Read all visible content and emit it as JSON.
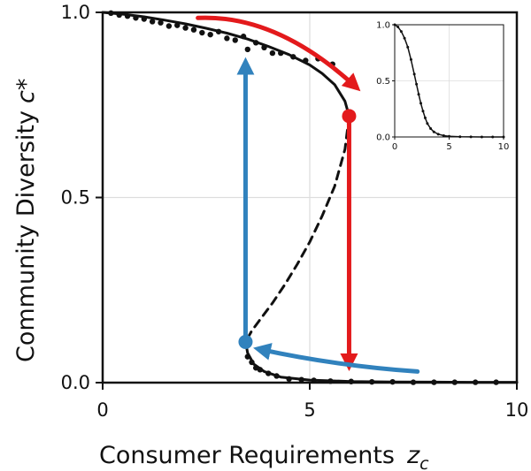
{
  "chart_data": {
    "type": "line",
    "xlabel": "Consumer Requirements",
    "xlabel_symbol": "z",
    "xlabel_subscript": "c",
    "ylabel": "Community Diversity",
    "ylabel_symbol": "c*",
    "xlim": [
      0,
      10
    ],
    "ylim": [
      0,
      1
    ],
    "xticks": [
      0,
      5,
      10
    ],
    "yticks": [
      0.0,
      0.5,
      1.0
    ],
    "xtick_labels": [
      "0",
      "5",
      "10"
    ],
    "ytick_labels": [
      "0.0",
      "0.5",
      "1.0"
    ],
    "grid": true,
    "series": [
      {
        "style": "solid",
        "x": [
          0,
          0.5,
          1,
          1.5,
          2,
          2.5,
          3,
          3.5,
          4,
          4.5,
          5,
          5.3,
          5.6,
          5.85,
          5.95
        ],
        "y": [
          1.0,
          0.995,
          0.988,
          0.979,
          0.969,
          0.957,
          0.944,
          0.928,
          0.908,
          0.886,
          0.858,
          0.835,
          0.805,
          0.76,
          0.72
        ]
      },
      {
        "style": "dashed",
        "x": [
          5.95,
          5.85,
          5.6,
          5.3,
          5.0,
          4.7,
          4.4,
          4.1,
          3.8,
          3.6,
          3.5,
          3.45
        ],
        "y": [
          0.72,
          0.63,
          0.53,
          0.45,
          0.38,
          0.32,
          0.265,
          0.215,
          0.17,
          0.14,
          0.12,
          0.11
        ]
      },
      {
        "style": "solid",
        "x": [
          3.45,
          3.5,
          3.65,
          3.9,
          4.3,
          5.0,
          6.0,
          7.0,
          8.0,
          9.0,
          10.0
        ],
        "y": [
          0.11,
          0.08,
          0.05,
          0.03,
          0.015,
          0.007,
          0.003,
          0.002,
          0.0015,
          0.001,
          0.001
        ]
      }
    ],
    "scatter_points": {
      "x": [
        0.2,
        0.4,
        0.6,
        0.8,
        1.0,
        1.2,
        1.4,
        1.6,
        1.8,
        2.0,
        2.2,
        2.4,
        2.6,
        2.8,
        3.0,
        3.2,
        3.4,
        3.5,
        3.7,
        3.9,
        4.1,
        4.3,
        4.6,
        4.9,
        5.2,
        5.55,
        3.5,
        3.6,
        3.7,
        3.8,
        4.0,
        4.2,
        4.5,
        4.8,
        5.1,
        5.5,
        6.0,
        6.5,
        7.0,
        7.5,
        8.0,
        8.5,
        9.0,
        9.5
      ],
      "y": [
        0.998,
        0.993,
        0.99,
        0.985,
        0.982,
        0.975,
        0.972,
        0.963,
        0.965,
        0.958,
        0.953,
        0.945,
        0.94,
        0.948,
        0.93,
        0.925,
        0.935,
        0.9,
        0.918,
        0.905,
        0.89,
        0.89,
        0.88,
        0.87,
        0.875,
        0.86,
        0.07,
        0.055,
        0.04,
        0.035,
        0.025,
        0.018,
        0.01,
        0.008,
        0.006,
        0.004,
        0.003,
        0.002,
        0.002,
        0.001,
        0.001,
        0.001,
        0.001,
        0.001
      ]
    },
    "annotations": [
      {
        "type": "arrow",
        "color": "#e31a1c",
        "shape": "curved",
        "from": [
          2.3,
          0.985
        ],
        "to": [
          6.1,
          0.8
        ]
      },
      {
        "type": "arrow",
        "color": "#e31a1c",
        "shape": "straight",
        "from": [
          5.95,
          0.72
        ],
        "to": [
          5.95,
          0.05
        ]
      },
      {
        "type": "arrow",
        "color": "#3182bd",
        "shape": "curved",
        "from": [
          7.6,
          0.03
        ],
        "to": [
          3.8,
          0.09
        ]
      },
      {
        "type": "arrow",
        "color": "#3182bd",
        "shape": "straight",
        "from": [
          3.45,
          0.11
        ],
        "to": [
          3.45,
          0.86
        ]
      }
    ],
    "markers": [
      {
        "x": 5.95,
        "y": 0.72,
        "color": "#e31a1c"
      },
      {
        "x": 3.45,
        "y": 0.11,
        "color": "#3182bd"
      }
    ],
    "inset": {
      "type": "line",
      "xlim": [
        0,
        10
      ],
      "ylim": [
        0,
        1
      ],
      "xtick_labels": [
        "0",
        "5",
        "10"
      ],
      "ytick_labels": [
        "0.0",
        "0.5",
        "1.0"
      ],
      "grid": true,
      "x": [
        0,
        0.3,
        0.6,
        0.9,
        1.2,
        1.5,
        1.8,
        2.0,
        2.2,
        2.4,
        2.6,
        2.8,
        3.0,
        3.3,
        3.6,
        4.0,
        4.5,
        5.0,
        6.0,
        7.0,
        8.0,
        9.0,
        10.0
      ],
      "y": [
        1.0,
        0.98,
        0.94,
        0.88,
        0.8,
        0.69,
        0.56,
        0.47,
        0.38,
        0.3,
        0.23,
        0.17,
        0.12,
        0.075,
        0.045,
        0.025,
        0.012,
        0.006,
        0.002,
        0.001,
        0.0,
        0.0,
        0.0
      ]
    }
  }
}
